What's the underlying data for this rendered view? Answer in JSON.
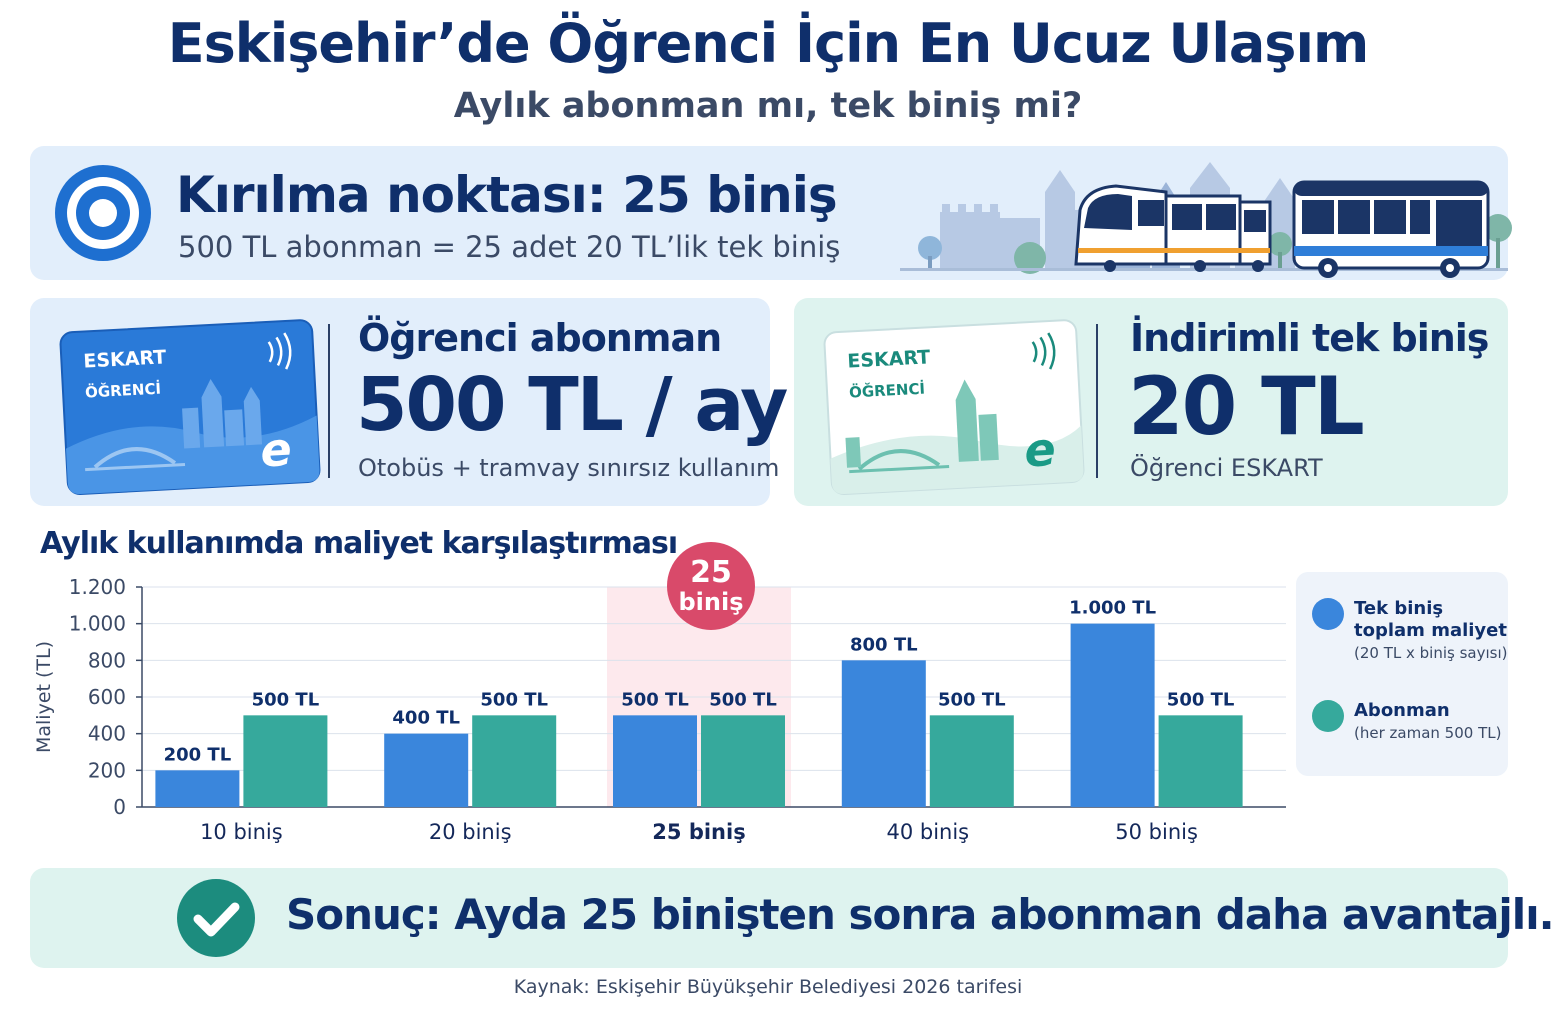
{
  "header": {
    "title": "Eskişehir’de Öğrenci İçin En Ucuz Ulaşım",
    "subtitle": "Aylık abonman mı, tek biniş mi?"
  },
  "breakeven": {
    "title": "Kırılma noktası: 25 biniş",
    "description": "500 TL abonman = 25 adet 20 TL’lik tek biniş"
  },
  "subscription_card": {
    "card_brand": "ESKART",
    "card_type": "ÖĞRENCİ",
    "card_logo": "e",
    "title": "Öğrenci abonman",
    "price": "500 TL / ay",
    "note": "Otobüs + tramvay sınırsız kullanım"
  },
  "single_card": {
    "card_brand": "ESKART",
    "card_type": "ÖĞRENCİ",
    "card_logo": "e",
    "title": "İndirimli tek biniş",
    "price": "20 TL",
    "note": "Öğrenci ESKART"
  },
  "chart_data": {
    "type": "bar",
    "title": "Aylık kullanımda maliyet karşılaştırması",
    "ylabel": "Maliyet (TL)",
    "xlabel": "",
    "ylim": [
      0,
      1200
    ],
    "yticks": [
      0,
      200,
      400,
      600,
      800,
      1000,
      1200
    ],
    "ytick_labels": [
      "0",
      "200",
      "400",
      "600",
      "800",
      "1.000",
      "1.200"
    ],
    "grid": true,
    "legend_position": "right",
    "categories": [
      "10 biniş",
      "20 biniş",
      "25 biniş",
      "40 biniş",
      "50 biniş"
    ],
    "highlight_category": "25 biniş",
    "highlight_badge": [
      "25",
      "biniş"
    ],
    "series": [
      {
        "name": "Tek biniş toplam maliyet",
        "note": "(20 TL x biniş sayısı)",
        "color": "#3a86dc",
        "values": [
          200,
          400,
          500,
          800,
          1000
        ],
        "labels": [
          "200 TL",
          "400 TL",
          "500 TL",
          "800 TL",
          "1.000 TL"
        ]
      },
      {
        "name": "Abonman",
        "note": "(her zaman 500 TL)",
        "color": "#36a99c",
        "values": [
          500,
          500,
          500,
          500,
          500
        ],
        "labels": [
          "500 TL",
          "500 TL",
          "500 TL",
          "500 TL",
          "500 TL"
        ]
      }
    ]
  },
  "conclusion": {
    "text": "Sonuç:  Ayda 25 binişten sonra abonman daha avantajlı."
  },
  "footer": {
    "source": "Kaynak: Eskişehir Büyükşehir Belediyesi 2026 tarifesi"
  },
  "icons": {
    "target": "target-icon",
    "check": "check-circle-icon",
    "contactless": "contactless-icon"
  },
  "colors": {
    "navy": "#0f2f6b",
    "blue": "#3a86dc",
    "teal": "#36a99c",
    "highlight": "#d94a6a"
  }
}
